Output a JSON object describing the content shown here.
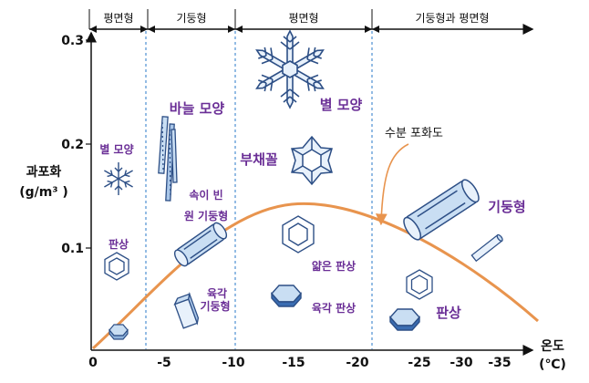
{
  "regimes": [
    {
      "label": "평면형"
    },
    {
      "label": "기둥형"
    },
    {
      "label": "평면형"
    },
    {
      "label": "기둥형과 평면형"
    }
  ],
  "axes": {
    "y_title": "과포화",
    "y_unit": "(g/m³ )",
    "x_title": "온도",
    "x_unit": "(℃)",
    "x_ticks": [
      "0",
      "-5",
      "-10",
      "-15",
      "-20",
      "-25",
      "-30",
      "-35"
    ],
    "y_ticks": [
      "0.1",
      "0.2",
      "0.3"
    ]
  },
  "crystal_labels": {
    "star_small": "별 모양",
    "plate_small": "판상",
    "needle": "바늘 모양",
    "hollow_column": "속이 빈\n원 기둥형",
    "hex_column_small": "육각\n기둥형",
    "star_large": "별 모양",
    "fern": "부채꼴",
    "thin_plate": "얇은 판상",
    "hex_plate": "육각 판상",
    "saturation": "수분 포화도",
    "column_right": "기둥형",
    "plate_right": "판상"
  },
  "colors": {
    "curve": "#e8944e",
    "divider": "#4e8fd2",
    "label_purple": "#6a2e96",
    "crystal_blue": "#2d4f86",
    "crystal_fill": "#c9def3"
  }
}
